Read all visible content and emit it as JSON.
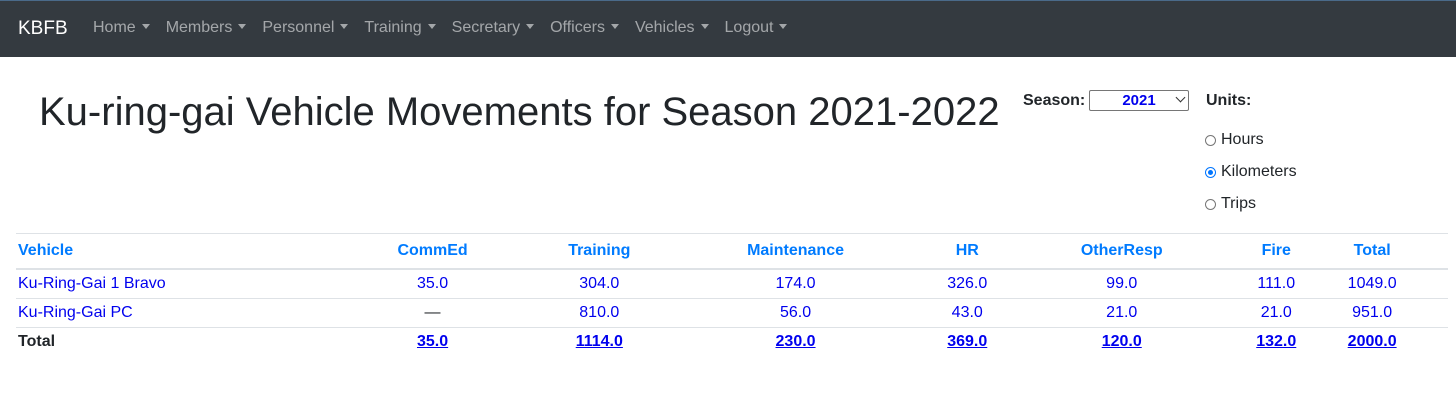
{
  "navbar": {
    "brand": "KBFB",
    "items": [
      "Home",
      "Members",
      "Personnel",
      "Training",
      "Secretary",
      "Officers",
      "Vehicles",
      "Logout"
    ]
  },
  "page_title": "Ku-ring-gai Vehicle Movements for Season 2021-2022",
  "season": {
    "label": "Season:",
    "selected": "2021"
  },
  "units": {
    "label": "Units:",
    "options": [
      {
        "label": "Hours",
        "checked": false
      },
      {
        "label": "Kilometers",
        "checked": true
      },
      {
        "label": "Trips",
        "checked": false
      }
    ]
  },
  "table": {
    "headers": [
      "Vehicle",
      "CommEd",
      "Training",
      "Maintenance",
      "HR",
      "OtherResp",
      "Fire",
      "Total"
    ],
    "rows": [
      [
        "Ku-Ring-Gai 1 Bravo",
        "35.0",
        "304.0",
        "174.0",
        "326.0",
        "99.0",
        "111.0",
        "1049.0"
      ],
      [
        "Ku-Ring-Gai PC",
        "—",
        "810.0",
        "56.0",
        "43.0",
        "21.0",
        "21.0",
        "951.0"
      ]
    ],
    "totals": [
      "Total",
      "35.0",
      "1114.0",
      "230.0",
      "369.0",
      "120.0",
      "132.0",
      "2000.0"
    ]
  },
  "colors": {
    "navbar_bg": "#343a40",
    "header_link": "#007bff",
    "link": "#0000ee",
    "radio_accent": "#0075ff"
  }
}
